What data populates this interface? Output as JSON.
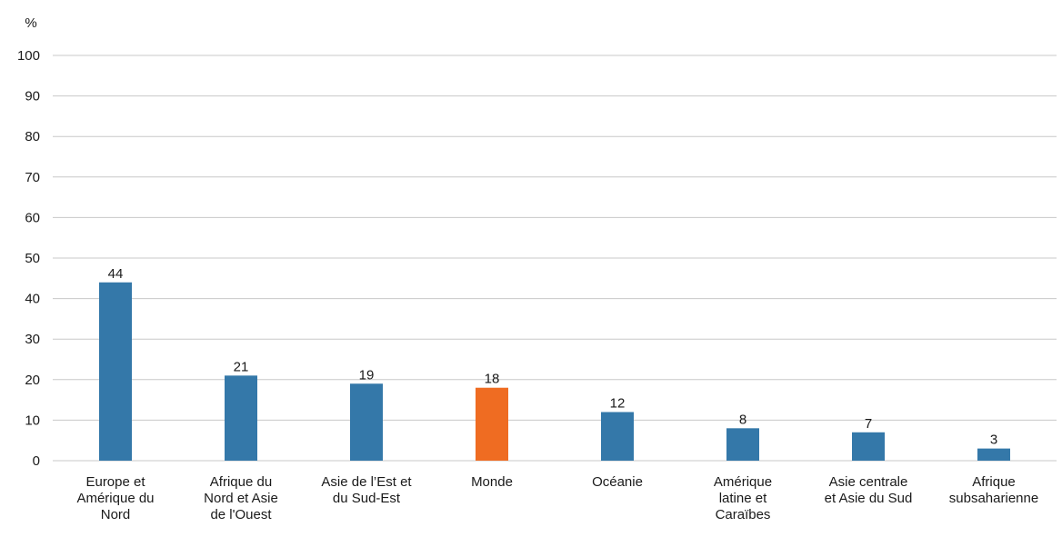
{
  "chart_data": {
    "type": "bar",
    "ylabel": "%",
    "ylim": [
      0,
      100
    ],
    "yticks": [
      0,
      10,
      20,
      30,
      40,
      50,
      60,
      70,
      80,
      90,
      100
    ],
    "grid": true,
    "categories": [
      [
        "Europe et",
        "Amérique du",
        "Nord"
      ],
      [
        "Afrique du",
        "Nord et Asie",
        "de l'Ouest"
      ],
      [
        "Asie de l’Est et",
        "du Sud-Est"
      ],
      [
        "Monde"
      ],
      [
        "Océanie"
      ],
      [
        "Amérique",
        "latine et",
        "Caraïbes"
      ],
      [
        "Asie centrale",
        "et Asie du Sud"
      ],
      [
        "Afrique",
        "subsaharienne"
      ]
    ],
    "values": [
      44,
      21,
      19,
      18,
      12,
      8,
      7,
      3
    ],
    "colors": [
      "#3478a9",
      "#3478a9",
      "#3478a9",
      "#ef6c22",
      "#3478a9",
      "#3478a9",
      "#3478a9",
      "#3478a9"
    ],
    "gridColor": "#c8c8c8"
  }
}
